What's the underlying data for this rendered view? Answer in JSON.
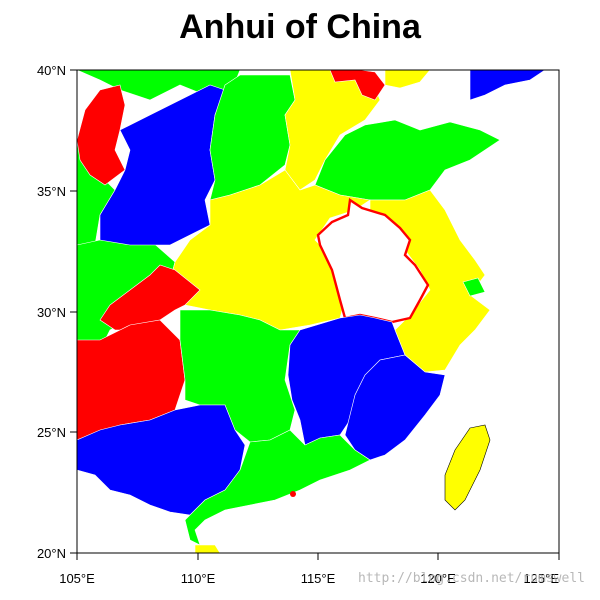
{
  "title": "Anhui of China",
  "map": {
    "lon_range": [
      105,
      125
    ],
    "lat_range": [
      20,
      40
    ],
    "lat_ticks": [
      "40°N",
      "35°N",
      "30°N",
      "25°N",
      "20°N"
    ],
    "lon_ticks": [
      "105°E",
      "110°E",
      "115°E",
      "120°E",
      "125°E"
    ],
    "highlight_region": "Anhui",
    "highlight_outline_color": "#ff0000",
    "fill_colors": {
      "red": "#ff0000",
      "green": "#00ff00",
      "blue": "#0000ff",
      "yellow": "#ffff00"
    },
    "land_fill_colors_note_free": "",
    "ocean_color": "#ffffff"
  },
  "watermark": "http://blog.csdn.net/rumswell"
}
